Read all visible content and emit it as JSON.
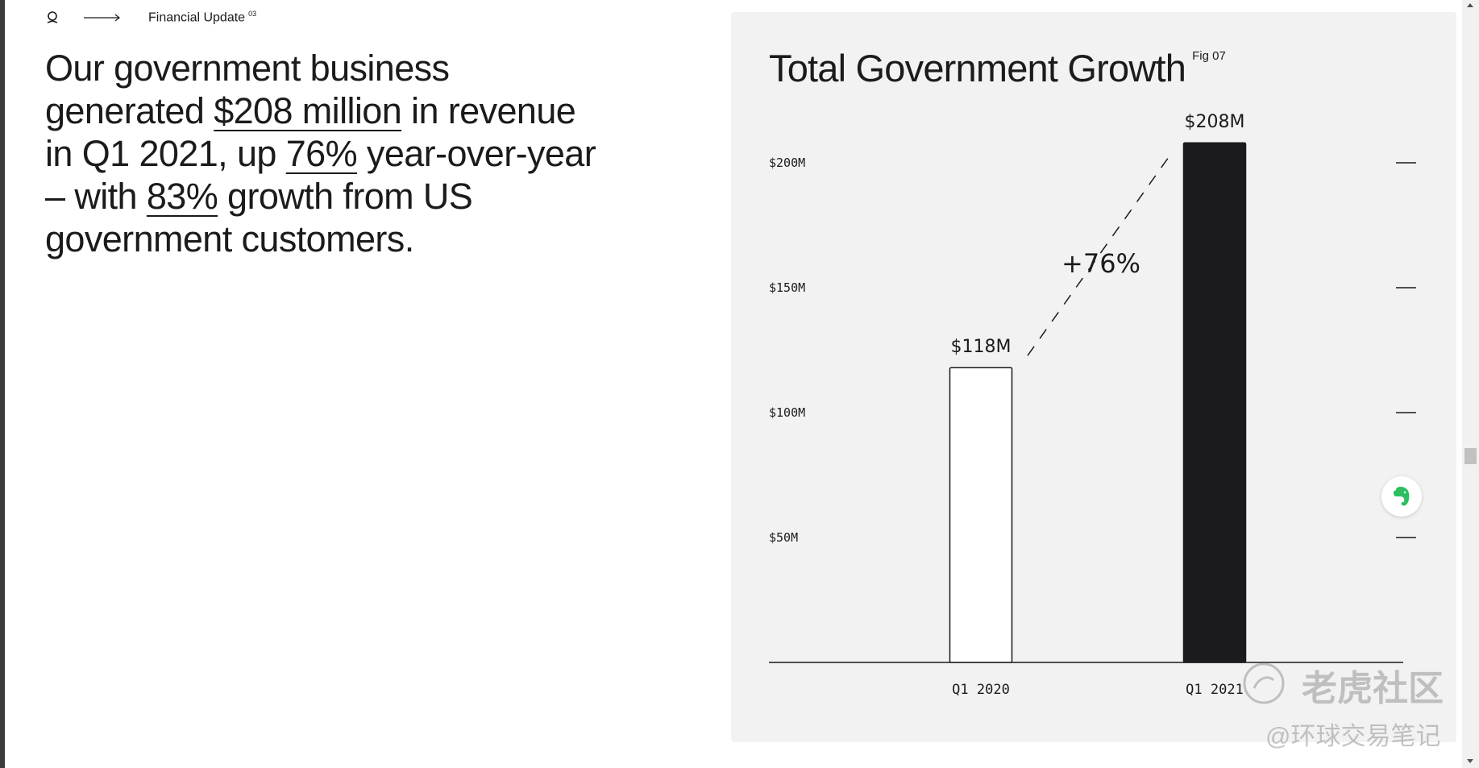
{
  "nav": {
    "title": "Financial Update",
    "superscript": "03",
    "logo_icon": "palantir-logo-icon",
    "arrow_icon": "long-arrow-right-icon"
  },
  "headline": {
    "p1": "Our government business generated ",
    "h1": "$208 million",
    "p2": " in revenue in Q1 2021, up ",
    "h2": "76%",
    "p3": " year-over-year – with ",
    "h3": "83%",
    "p4": " growth from US government customers."
  },
  "chart": {
    "title": "Total Government Growth",
    "fig_label": "Fig 07",
    "growth_label": "+76%"
  },
  "chart_data": {
    "type": "bar",
    "title": "Total Government Growth",
    "categories": [
      "Q1 2020",
      "Q1 2021"
    ],
    "values": [
      118,
      208
    ],
    "value_labels": [
      "$118M",
      "$208M"
    ],
    "bar_styles": [
      "outline",
      "filled"
    ],
    "y_ticks": [
      50,
      100,
      150,
      200
    ],
    "y_tick_labels": [
      "$50M",
      "$100M",
      "$150M",
      "$200M"
    ],
    "ylim": [
      0,
      208
    ],
    "xlabel": "",
    "ylabel": "",
    "grid": false,
    "annotation": "+76%"
  },
  "watermark": {
    "line1": "老虎社区",
    "line2": "@环球交易笔记"
  },
  "colors": {
    "panel_bg": "#f2f2f2",
    "ink": "#1b1b1d",
    "evernote_green": "#2dbe60"
  },
  "floating_button": {
    "icon": "evernote-elephant-icon"
  }
}
